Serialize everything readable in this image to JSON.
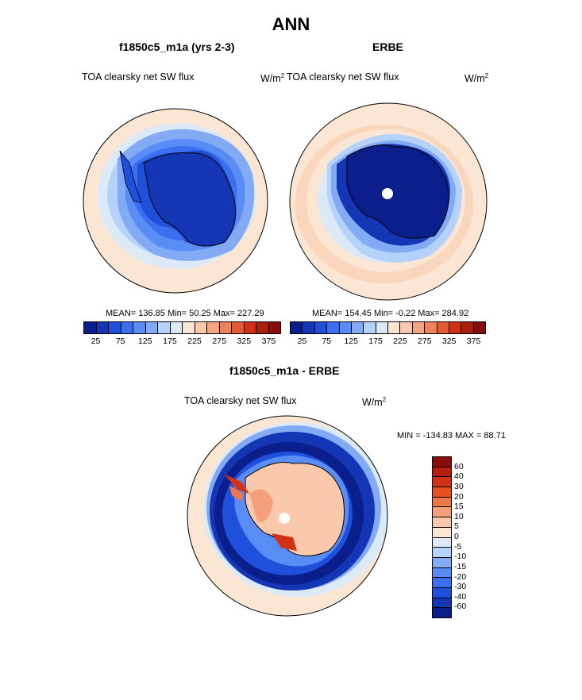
{
  "title": "ANN",
  "panels": {
    "model": {
      "subtitle": "f1850c5_m1a (yrs 2-3)",
      "variable": "TOA clearsky net SW flux",
      "units_base": "W/m",
      "units_exp": "2",
      "stats": "MEAN= 136.85  Min=  50.25  Max= 227.29"
    },
    "obs": {
      "subtitle": "ERBE",
      "variable": "TOA clearsky net SW flux",
      "units_base": "W/m",
      "units_exp": "2",
      "stats": "MEAN= 154.45  Min=  -0.22  Max= 284.92"
    },
    "diff": {
      "subtitle": "f1850c5_m1a - ERBE",
      "variable": "TOA clearsky net SW flux",
      "units_base": "W/m",
      "units_exp": "2",
      "minmax": "MIN = -134.83 MAX =  88.71"
    }
  },
  "colorbar_main": {
    "ticks": [
      "25",
      "75",
      "125",
      "175",
      "225",
      "275",
      "325",
      "375"
    ],
    "colors": [
      "#0a1e8c",
      "#1436b4",
      "#1e50dc",
      "#3c6ef0",
      "#5a8cf5",
      "#82aaf5",
      "#b4d2fa",
      "#dceaf8",
      "#fbe6d4",
      "#fac8aa",
      "#f5a582",
      "#f0825a",
      "#e65a32",
      "#d23214",
      "#aa1e0a",
      "#8c0c0c"
    ]
  },
  "colorbar_diff": {
    "labels": [
      "60",
      "40",
      "30",
      "20",
      "15",
      "10",
      "5",
      "0",
      "-5",
      "-10",
      "-15",
      "-20",
      "-30",
      "-40",
      "-60"
    ],
    "colors": [
      "#8c0c0c",
      "#b41e0a",
      "#d23214",
      "#e6501e",
      "#f07846",
      "#f5a07a",
      "#fac8aa",
      "#fbe6d4",
      "#dceaf8",
      "#b4d2fa",
      "#82aaf5",
      "#5a8cf5",
      "#3c6ef0",
      "#1e50dc",
      "#1436b4",
      "#0a1e8c"
    ]
  }
}
